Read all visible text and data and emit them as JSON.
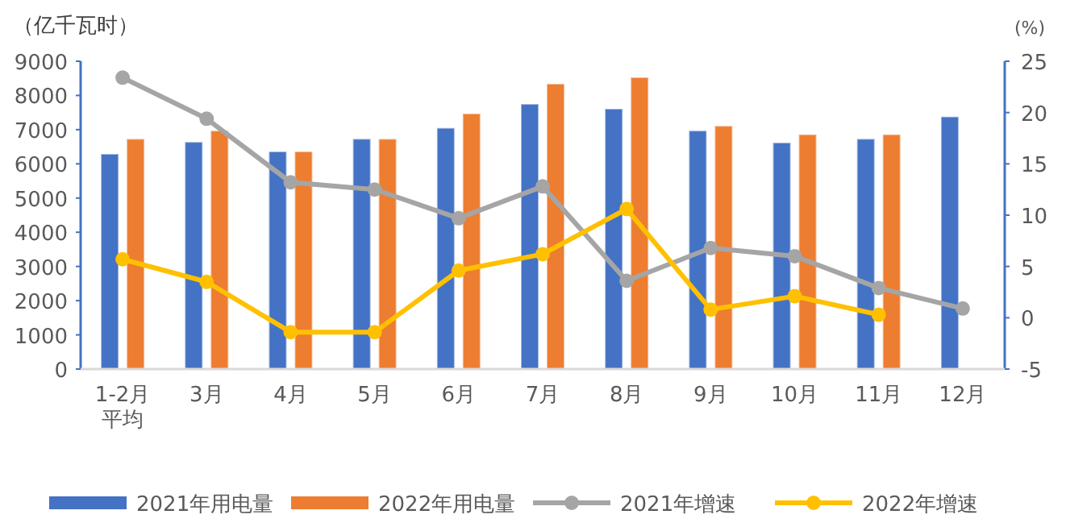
{
  "chart_data": {
    "type": "bar",
    "ylabel": "（亿千瓦时）",
    "y2label": "(%)",
    "categories": [
      "1-2月平均",
      "3月",
      "4月",
      "5月",
      "6月",
      "7月",
      "8月",
      "9月",
      "10月",
      "11月",
      "12月"
    ],
    "series": [
      {
        "name": "2021年用电量",
        "color": "#4472c4",
        "values": [
          6290,
          6640,
          6360,
          6730,
          7050,
          7750,
          7610,
          6970,
          6620,
          6730,
          7380
        ]
      },
      {
        "name": "2022年用电量",
        "color": "#ed7d31",
        "values": [
          6730,
          6970,
          6360,
          6730,
          7470,
          8340,
          8530,
          7110,
          6860,
          6860,
          null
        ]
      },
      {
        "name": "2021年增速",
        "type": "line",
        "axis": "y2",
        "color": "#a5a5a5",
        "marker": "circle",
        "values": [
          23.4,
          19.4,
          13.2,
          12.5,
          9.7,
          12.8,
          3.6,
          6.8,
          6.0,
          2.9,
          0.9
        ]
      },
      {
        "name": "2022年增速",
        "type": "line",
        "axis": "y2",
        "color": "#ffc000",
        "marker": "circle",
        "values": [
          5.7,
          3.5,
          -1.4,
          -1.4,
          4.6,
          6.2,
          10.6,
          0.8,
          2.1,
          0.3,
          null
        ]
      }
    ],
    "ylim": [
      0,
      9000
    ],
    "yticks": [
      0,
      1000,
      2000,
      3000,
      4000,
      5000,
      6000,
      7000,
      8000,
      9000
    ],
    "y2lim": [
      -5,
      25
    ],
    "y2ticks": [
      -5,
      0,
      5,
      10,
      15,
      20,
      25
    ],
    "grid": false,
    "legend": "bottom"
  }
}
